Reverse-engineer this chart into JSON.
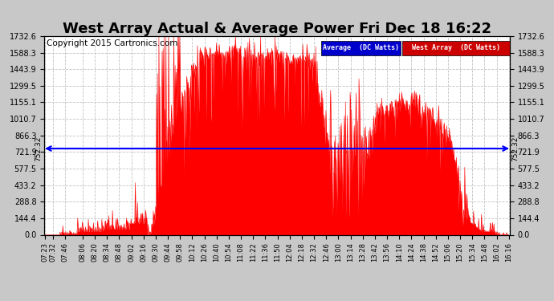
{
  "title": "West Array Actual & Average Power Fri Dec 18 16:22",
  "copyright": "Copyright 2015 Cartronics.com",
  "avg_value": 752.32,
  "y_max": 1732.6,
  "y_min": 0.0,
  "yticks": [
    0.0,
    144.4,
    288.8,
    433.2,
    577.5,
    721.9,
    866.3,
    1010.7,
    1155.1,
    1299.5,
    1443.9,
    1588.3,
    1732.6
  ],
  "xtick_labels": [
    "07:23",
    "07:32",
    "07:46",
    "08:06",
    "08:20",
    "08:34",
    "08:48",
    "09:02",
    "09:16",
    "09:30",
    "09:44",
    "09:58",
    "10:12",
    "10:26",
    "10:40",
    "10:54",
    "11:08",
    "11:22",
    "11:36",
    "11:50",
    "12:04",
    "12:18",
    "12:32",
    "12:46",
    "13:00",
    "13:14",
    "13:28",
    "13:42",
    "13:56",
    "14:10",
    "14:24",
    "14:38",
    "14:52",
    "15:06",
    "15:20",
    "15:34",
    "15:48",
    "16:02",
    "16:16"
  ],
  "fill_color": "#ff0000",
  "line_color": "#ff0000",
  "avg_line_color": "#0000ff",
  "avg_label": "Average  (DC Watts)",
  "west_label": "West Array  (DC Watts)",
  "avg_label_bg": "#0000cc",
  "west_label_bg": "#cc0000",
  "grid_color": "#bbbbbb",
  "title_fontsize": 13,
  "copyright_fontsize": 7.5
}
